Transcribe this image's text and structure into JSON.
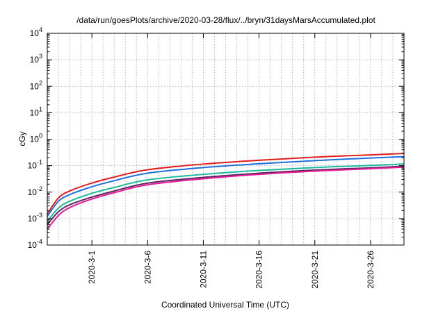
{
  "chart_data": {
    "type": "line",
    "title": "/data/run/goesPlots/archive/2020-03-28/flux/../bryn/31daysMarsAccumulated.plot",
    "xlabel": "Coordinated Universal Time (UTC)",
    "ylabel": "cGy",
    "y_scale": "log",
    "ylim_exponents": [
      -4,
      4
    ],
    "y_tick_base": "10",
    "y_tick_exponents": [
      "-4",
      "-3",
      "-2",
      "-1",
      "0",
      "1",
      "2",
      "3",
      "4"
    ],
    "xlim": [
      "2020-02-26",
      "2020-03-29"
    ],
    "x_ticks": [
      {
        "date": "2020-03-01",
        "label": "2020-3-1"
      },
      {
        "date": "2020-03-06",
        "label": "2020-3-6"
      },
      {
        "date": "2020-03-11",
        "label": "2020-3-11"
      },
      {
        "date": "2020-03-16",
        "label": "2020-3-16"
      },
      {
        "date": "2020-03-21",
        "label": "2020-3-21"
      },
      {
        "date": "2020-03-26",
        "label": "2020-3-26"
      }
    ],
    "grid": true,
    "legend": false,
    "x": [
      "2020-02-26",
      "2020-02-27",
      "2020-02-28",
      "2020-03-01",
      "2020-03-03",
      "2020-03-06",
      "2020-03-11",
      "2020-03-16",
      "2020-03-21",
      "2020-03-26",
      "2020-03-29"
    ],
    "series": [
      {
        "color": "#e41a1c",
        "values": [
          0.0015,
          0.006,
          0.011,
          0.022,
          0.037,
          0.07,
          0.115,
          0.16,
          0.21,
          0.255,
          0.29
        ]
      },
      {
        "color": "#1f6fe0",
        "values": [
          0.0012,
          0.0045,
          0.008,
          0.016,
          0.027,
          0.052,
          0.085,
          0.118,
          0.155,
          0.195,
          0.22
        ]
      },
      {
        "color": "#1fb8a0",
        "values": [
          0.0008,
          0.0025,
          0.0045,
          0.009,
          0.015,
          0.029,
          0.047,
          0.066,
          0.085,
          0.102,
          0.115
        ]
      },
      {
        "color": "#5a2a5a",
        "values": [
          0.0006,
          0.0018,
          0.0033,
          0.0065,
          0.011,
          0.022,
          0.036,
          0.052,
          0.068,
          0.083,
          0.095
        ]
      },
      {
        "color": "#e8199b",
        "values": [
          0.0004,
          0.0013,
          0.0026,
          0.0055,
          0.0095,
          0.019,
          0.032,
          0.047,
          0.062,
          0.077,
          0.088
        ]
      }
    ]
  }
}
